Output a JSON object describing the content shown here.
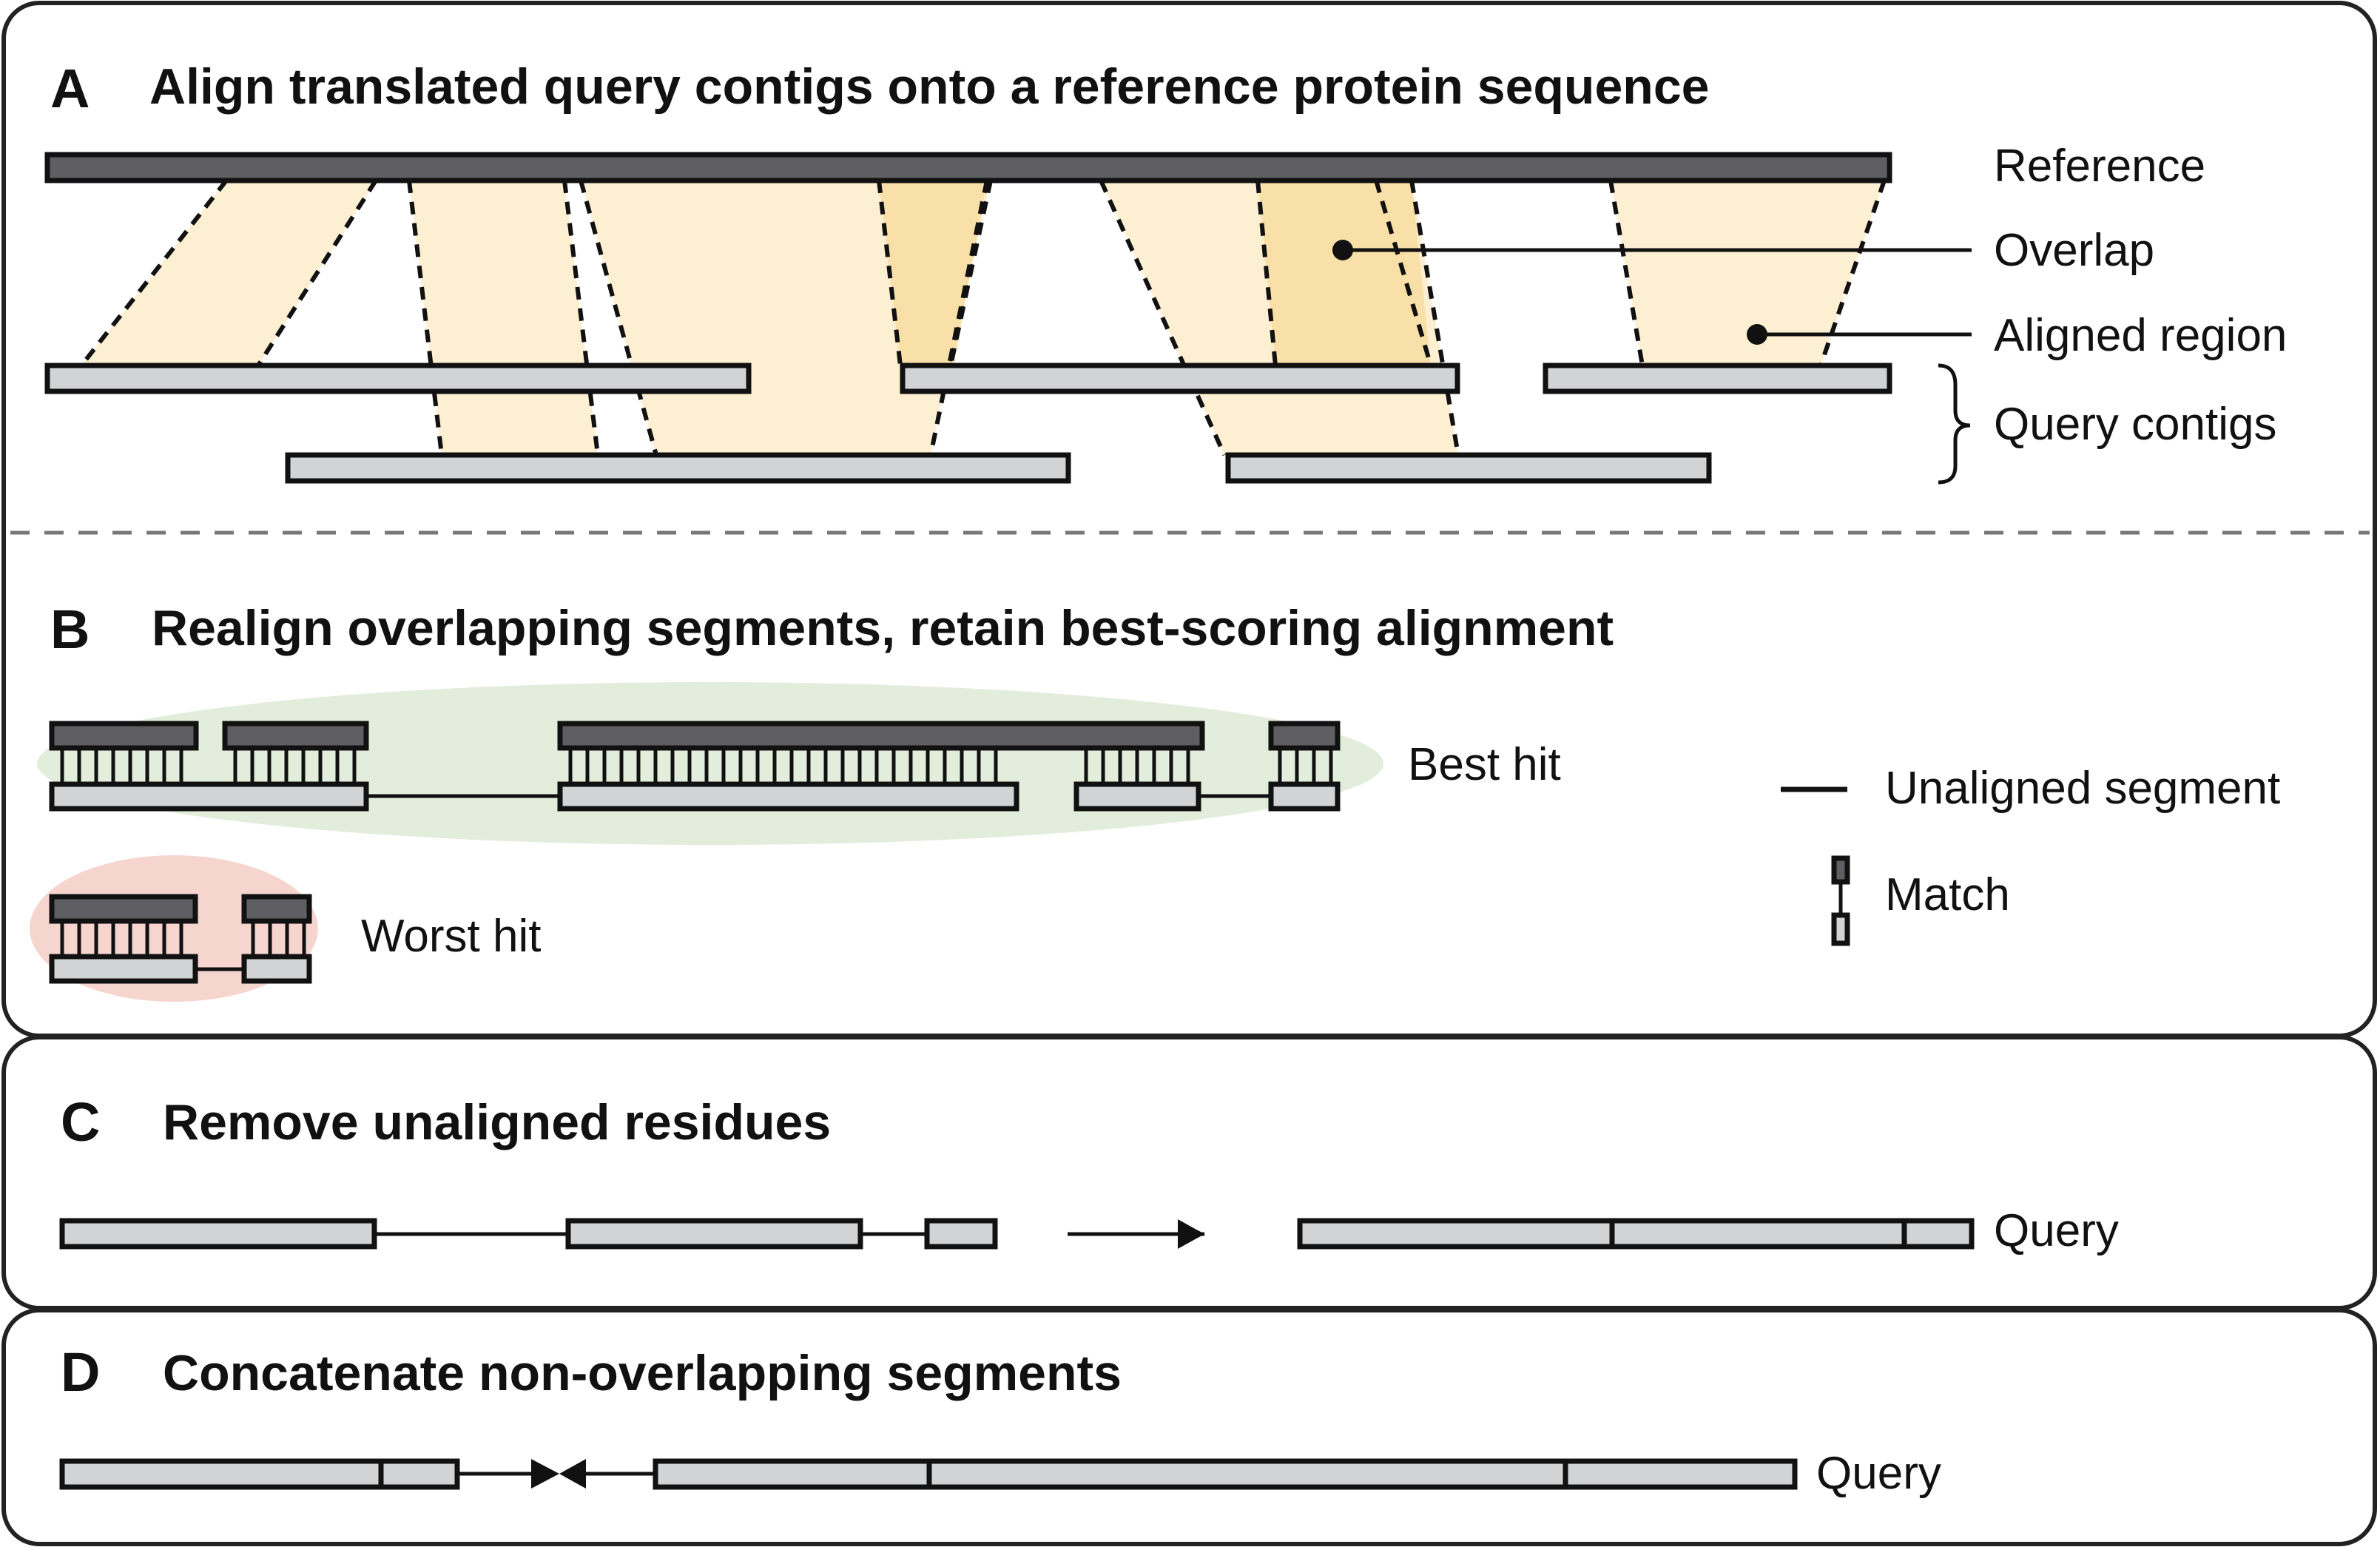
{
  "panels": [
    {
      "letter": "A",
      "title": "Align translated query contigs onto a reference protein sequence"
    },
    {
      "letter": "B",
      "title": "Realign overlapping segments, retain best-scoring alignment"
    },
    {
      "letter": "C",
      "title": "Remove unaligned residues"
    },
    {
      "letter": "D",
      "title": "Concatenate non-overlapping segments"
    }
  ],
  "panelA": {
    "labels": {
      "reference": "Reference",
      "overlap": "Overlap",
      "aligned_region": "Aligned region",
      "query_contigs": "Query contigs"
    },
    "colors": {
      "aligned": "#fdefd2",
      "overlap": "#f9e0a8",
      "reference": "#5f5f63",
      "query": "#d2d3d4"
    }
  },
  "panelB": {
    "labels": {
      "best_hit": "Best hit",
      "worst_hit": "Worst hit",
      "unaligned_segment": "Unaligned segment",
      "match": "Match"
    },
    "colors": {
      "best_hit_bg": "#e2eedb",
      "worst_hit_bg": "#f6d5cf"
    }
  },
  "panelC": {
    "labels": {
      "query": "Query"
    }
  },
  "panelD": {
    "labels": {
      "query": "Query"
    }
  }
}
